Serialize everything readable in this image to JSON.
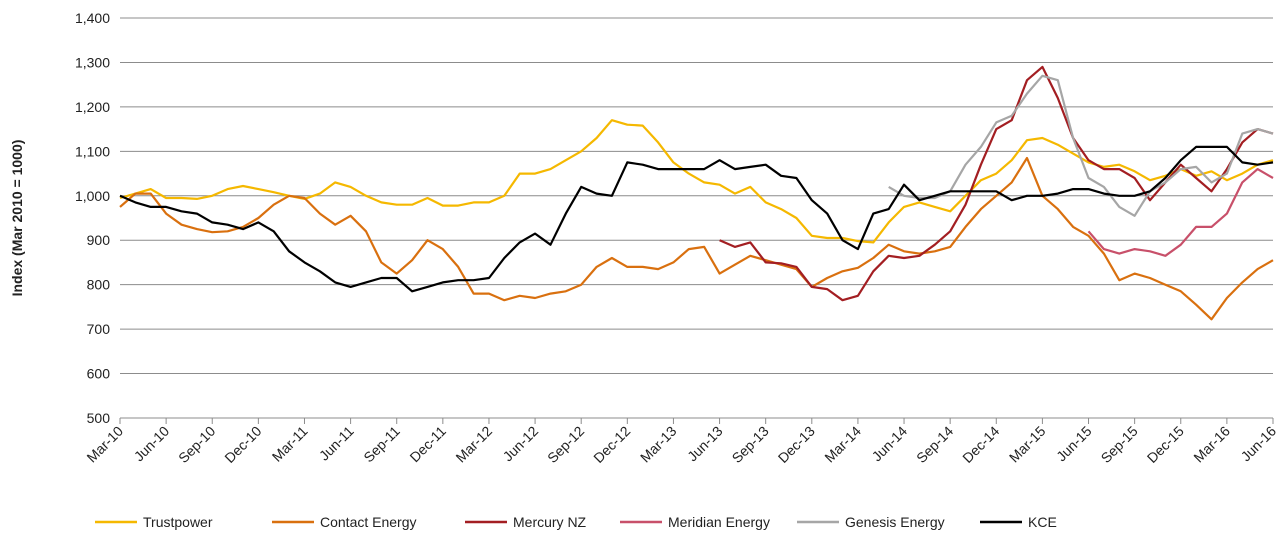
{
  "chart_data": {
    "type": "line",
    "y_label": "Index (Mar 2010 = 1000)",
    "categories": [
      "Mar-10",
      null,
      null,
      "Jun-10",
      null,
      null,
      "Sep-10",
      null,
      null,
      "Dec-10",
      null,
      null,
      "Mar-11",
      null,
      null,
      "Jun-11",
      null,
      null,
      "Sep-11",
      null,
      null,
      "Dec-11",
      null,
      null,
      "Mar-12",
      null,
      null,
      "Jun-12",
      null,
      null,
      "Sep-12",
      null,
      null,
      "Dec-12",
      null,
      null,
      "Mar-13",
      null,
      null,
      "Jun-13",
      null,
      null,
      "Sep-13",
      null,
      null,
      "Dec-13",
      null,
      null,
      "Mar-14",
      null,
      null,
      "Jun-14",
      null,
      null,
      "Sep-14",
      null,
      null,
      "Dec-14",
      null,
      null,
      "Mar-15",
      null,
      null,
      "Jun-15",
      null,
      null,
      "Sep-15",
      null,
      null,
      "Dec-15",
      null,
      null,
      "Mar-16",
      null,
      null,
      "Jun-16"
    ],
    "ylim": [
      500,
      1400
    ],
    "yticks": [
      500,
      600,
      700,
      800,
      900,
      {
        "value": 1000,
        "label": "1,000"
      },
      {
        "value": 1100,
        "label": "1,100"
      },
      {
        "value": 1200,
        "label": "1,200"
      },
      {
        "value": 1300,
        "label": "1,300"
      },
      {
        "value": 1400,
        "label": "1,400"
      }
    ],
    "grid": true,
    "legend": "bottom",
    "series": [
      {
        "name": "Trustpower",
        "color": "#f5b800",
        "values": [
          995,
          1005,
          1015,
          995,
          995,
          993,
          1000,
          1015,
          1022,
          1015,
          1008,
          1000,
          993,
          1005,
          1030,
          1020,
          1000,
          985,
          980,
          980,
          995,
          978,
          978,
          985,
          985,
          1000,
          1050,
          1050,
          1060,
          1080,
          1100,
          1130,
          1170,
          1160,
          1158,
          1120,
          1075,
          1050,
          1030,
          1025,
          1005,
          1020,
          985,
          970,
          950,
          910,
          905,
          905,
          898,
          895,
          940,
          975,
          985,
          975,
          965,
          1000,
          1035,
          1050,
          1080,
          1125,
          1130,
          1115,
          1095,
          1075,
          1065,
          1070,
          1055,
          1035,
          1045,
          1060,
          1045,
          1055,
          1035,
          1050,
          1070,
          1080
        ]
      },
      {
        "name": "Contact Energy",
        "color": "#d9700f",
        "values": [
          975,
          1005,
          1005,
          960,
          935,
          925,
          918,
          920,
          930,
          950,
          980,
          1000,
          995,
          960,
          935,
          955,
          920,
          850,
          825,
          855,
          900,
          880,
          840,
          780,
          780,
          765,
          775,
          770,
          780,
          785,
          800,
          840,
          860,
          840,
          840,
          835,
          850,
          880,
          885,
          825,
          845,
          865,
          855,
          845,
          835,
          795,
          815,
          830,
          838,
          860,
          890,
          875,
          870,
          875,
          885,
          930,
          970,
          1000,
          1030,
          1085,
          1000,
          970,
          930,
          910,
          870,
          810,
          825,
          815,
          800,
          785,
          755,
          722,
          770,
          805,
          835,
          855
        ]
      },
      {
        "name": "Mercury NZ",
        "color": "#a31e22",
        "values": [
          null,
          null,
          null,
          null,
          null,
          null,
          null,
          null,
          null,
          null,
          null,
          null,
          null,
          null,
          null,
          null,
          null,
          null,
          null,
          null,
          null,
          null,
          null,
          null,
          null,
          null,
          null,
          null,
          null,
          null,
          null,
          null,
          null,
          null,
          null,
          null,
          null,
          null,
          null,
          900,
          885,
          895,
          850,
          848,
          840,
          795,
          790,
          765,
          775,
          830,
          865,
          860,
          865,
          890,
          920,
          980,
          1070,
          1150,
          1170,
          1260,
          1290,
          1220,
          1130,
          1080,
          1060,
          1060,
          1040,
          990,
          1030,
          1070,
          1040,
          1010,
          1060,
          1120,
          1150,
          1140
        ]
      },
      {
        "name": "Meridian Energy",
        "color": "#c8506a",
        "values": [
          null,
          null,
          null,
          null,
          null,
          null,
          null,
          null,
          null,
          null,
          null,
          null,
          null,
          null,
          null,
          null,
          null,
          null,
          null,
          null,
          null,
          null,
          null,
          null,
          null,
          null,
          null,
          null,
          null,
          null,
          null,
          null,
          null,
          null,
          null,
          null,
          null,
          null,
          null,
          null,
          null,
          null,
          null,
          null,
          null,
          null,
          null,
          null,
          null,
          null,
          null,
          null,
          null,
          null,
          null,
          null,
          null,
          null,
          null,
          null,
          null,
          null,
          null,
          920,
          880,
          870,
          880,
          875,
          865,
          890,
          930,
          930,
          960,
          1030,
          1060,
          1040
        ]
      },
      {
        "name": "Genesis Energy",
        "color": "#a6a6a6",
        "values": [
          null,
          null,
          null,
          null,
          null,
          null,
          null,
          null,
          null,
          null,
          null,
          null,
          null,
          null,
          null,
          null,
          null,
          null,
          null,
          null,
          null,
          null,
          null,
          null,
          null,
          null,
          null,
          null,
          null,
          null,
          null,
          null,
          null,
          null,
          null,
          null,
          null,
          null,
          null,
          null,
          null,
          null,
          null,
          null,
          null,
          null,
          null,
          null,
          null,
          null,
          1020,
          1000,
          995,
          995,
          1010,
          1070,
          1110,
          1165,
          1180,
          1230,
          1270,
          1260,
          1130,
          1040,
          1020,
          975,
          955,
          1010,
          1030,
          1060,
          1065,
          1030,
          1050,
          1140,
          1150,
          1140
        ]
      },
      {
        "name": "KCE",
        "color": "#000000",
        "values": [
          1000,
          985,
          975,
          975,
          965,
          960,
          940,
          935,
          925,
          940,
          920,
          875,
          850,
          830,
          805,
          795,
          805,
          815,
          815,
          785,
          795,
          805,
          810,
          810,
          815,
          860,
          895,
          915,
          890,
          960,
          1020,
          1005,
          1000,
          1075,
          1070,
          1060,
          1060,
          1060,
          1060,
          1080,
          1060,
          1065,
          1070,
          1045,
          1040,
          990,
          960,
          900,
          880,
          960,
          970,
          1025,
          990,
          1000,
          1010,
          1010,
          1010,
          1010,
          990,
          1000,
          1000,
          1005,
          1015,
          1015,
          1005,
          1000,
          1000,
          1010,
          1040,
          1080,
          1110,
          1110,
          1110,
          1075,
          1070,
          1075
        ]
      }
    ]
  }
}
